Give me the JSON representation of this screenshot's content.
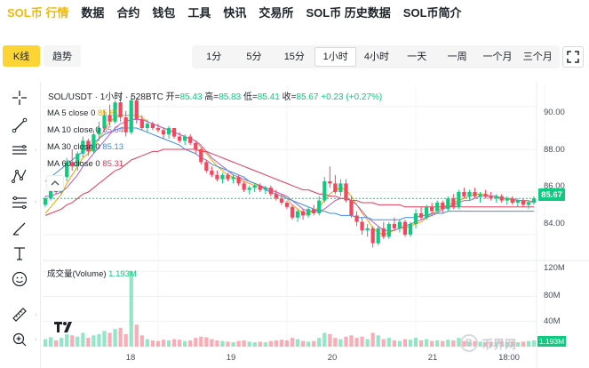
{
  "nav": {
    "items": [
      {
        "label": "SOL币 行情",
        "active": true
      },
      {
        "label": "数据",
        "active": false
      },
      {
        "label": "合约",
        "active": false
      },
      {
        "label": "钱包",
        "active": false
      },
      {
        "label": "工具",
        "active": false
      },
      {
        "label": "快讯",
        "active": false
      },
      {
        "label": "交易所",
        "active": false
      },
      {
        "label": "SOL币 历史数据",
        "active": false
      },
      {
        "label": "SOL币简介",
        "active": false
      }
    ]
  },
  "toolbar": {
    "chart_types": [
      {
        "label": "K线",
        "active": true
      },
      {
        "label": "趋势",
        "active": false
      }
    ],
    "intervals": [
      {
        "label": "1分",
        "active": false
      },
      {
        "label": "5分",
        "active": false
      },
      {
        "label": "15分",
        "active": false
      },
      {
        "label": "1小时",
        "active": true
      },
      {
        "label": "4小时",
        "active": false
      },
      {
        "label": "一天",
        "active": false
      },
      {
        "label": "一周",
        "active": false
      },
      {
        "label": "一个月",
        "active": false
      },
      {
        "label": "三个月",
        "active": false
      }
    ],
    "fullscreen_icon": "fullscreen-icon"
  },
  "drawing_tools": [
    {
      "name": "crosshair-icon"
    },
    {
      "name": "trend-line-icon"
    },
    {
      "name": "horizontal-lines-icon"
    },
    {
      "name": "pattern-icon"
    },
    {
      "name": "fib-retracement-icon"
    },
    {
      "name": "brush-icon"
    },
    {
      "name": "text-icon"
    },
    {
      "name": "emoji-icon"
    },
    {
      "name": "ruler-icon"
    },
    {
      "name": "zoom-in-icon"
    }
  ],
  "legend": {
    "symbol": "SOL/USDT · 1小时 · 528BTC",
    "open_label": "开=",
    "open": "85.43",
    "high_label": "高=",
    "high": "85.83",
    "low_label": "低=",
    "low": "85.41",
    "close_label": "收=",
    "close": "85.67",
    "change": "+0.23 (+0.27%)"
  },
  "ma": [
    {
      "label": "MA 5 close 0",
      "value": "85.61",
      "color": "#f0a500"
    },
    {
      "label": "MA 10 close 0",
      "value": "85.54",
      "color": "#b55fc7"
    },
    {
      "label": "MA 30 close 0",
      "value": "85.13",
      "color": "#3c8ee8"
    },
    {
      "label": "MA 60 close 0",
      "value": "85.31",
      "color": "#e03c5a"
    }
  ],
  "volume": {
    "label": "成交量(Volume)",
    "value": "1.193M",
    "tag": "1.193M"
  },
  "price_tag": "85.67",
  "colors": {
    "up": "#0ecb81",
    "down": "#f6465d",
    "accent": "#f0b90b"
  },
  "watermark": {
    "text": "币界网",
    "coin": "B"
  },
  "chart_data": {
    "type": "candlestick",
    "interval": "1小时",
    "y_ticks": [
      "90.00",
      "88.00",
      "86.00",
      "84.00"
    ],
    "ylim": [
      83.0,
      91.0
    ],
    "volume_ticks": [
      "120M",
      "80M",
      "40M"
    ],
    "volume_max": 130,
    "x_ticks": [
      {
        "label": "18",
        "index": 21
      },
      {
        "label": "19",
        "index": 45
      },
      {
        "label": "20",
        "index": 69
      },
      {
        "label": "21",
        "index": 93
      },
      {
        "label": "18:00",
        "index": 111
      }
    ],
    "candles": [
      [
        85.4,
        85.8,
        85.3,
        85.7,
        12
      ],
      [
        85.7,
        86.4,
        85.6,
        86.3,
        15
      ],
      [
        86.3,
        86.6,
        85.9,
        86.0,
        10
      ],
      [
        86.0,
        86.8,
        85.9,
        86.7,
        14
      ],
      [
        86.7,
        87.6,
        86.5,
        87.4,
        20
      ],
      [
        87.4,
        88.0,
        87.0,
        87.2,
        18
      ],
      [
        87.2,
        87.9,
        87.0,
        87.8,
        16
      ],
      [
        87.8,
        88.6,
        87.6,
        88.4,
        22
      ],
      [
        88.4,
        88.5,
        87.7,
        87.9,
        14
      ],
      [
        87.9,
        88.9,
        87.8,
        88.7,
        18
      ],
      [
        88.7,
        89.3,
        88.4,
        89.0,
        20
      ],
      [
        89.0,
        89.8,
        88.8,
        89.6,
        25
      ],
      [
        89.6,
        90.1,
        89.1,
        89.3,
        22
      ],
      [
        89.3,
        90.3,
        89.2,
        90.2,
        28
      ],
      [
        90.2,
        90.6,
        89.3,
        89.5,
        30
      ],
      [
        89.5,
        89.8,
        88.6,
        88.8,
        20
      ],
      [
        88.8,
        90.5,
        88.7,
        90.3,
        120
      ],
      [
        90.3,
        90.4,
        89.2,
        89.4,
        35
      ],
      [
        89.4,
        89.6,
        88.9,
        89.0,
        18
      ],
      [
        89.0,
        89.4,
        88.8,
        89.2,
        12
      ],
      [
        89.2,
        89.3,
        88.9,
        89.0,
        10
      ],
      [
        89.0,
        89.2,
        88.8,
        88.9,
        9
      ],
      [
        88.9,
        89.0,
        88.5,
        88.7,
        11
      ],
      [
        88.7,
        89.1,
        88.5,
        89.0,
        10
      ],
      [
        89.0,
        89.0,
        88.5,
        88.6,
        12
      ],
      [
        88.6,
        88.8,
        88.3,
        88.4,
        11
      ],
      [
        88.4,
        88.7,
        88.2,
        88.6,
        9
      ],
      [
        88.6,
        88.7,
        88.2,
        88.3,
        10
      ],
      [
        88.3,
        88.4,
        87.8,
        88.0,
        14
      ],
      [
        88.0,
        88.1,
        87.3,
        87.4,
        16
      ],
      [
        87.4,
        87.5,
        86.9,
        87.0,
        15
      ],
      [
        87.0,
        87.2,
        86.7,
        86.8,
        12
      ],
      [
        86.8,
        87.0,
        86.5,
        86.6,
        10
      ],
      [
        86.6,
        86.9,
        86.4,
        86.8,
        9
      ],
      [
        86.8,
        86.9,
        86.5,
        86.6,
        8
      ],
      [
        86.6,
        86.8,
        86.4,
        86.7,
        7
      ],
      [
        86.7,
        86.8,
        86.3,
        86.4,
        9
      ],
      [
        86.4,
        86.5,
        86.0,
        86.1,
        10
      ],
      [
        86.1,
        86.3,
        85.9,
        86.2,
        8
      ],
      [
        86.2,
        86.4,
        86.0,
        86.3,
        7
      ],
      [
        86.3,
        86.4,
        86.0,
        86.1,
        8
      ],
      [
        86.1,
        86.3,
        85.9,
        86.2,
        7
      ],
      [
        86.2,
        86.3,
        85.8,
        85.9,
        9
      ],
      [
        85.9,
        86.1,
        85.6,
        85.7,
        10
      ],
      [
        85.7,
        85.9,
        85.4,
        85.5,
        11
      ],
      [
        85.5,
        85.6,
        85.2,
        85.3,
        10
      ],
      [
        85.3,
        85.4,
        84.7,
        84.8,
        14
      ],
      [
        84.8,
        85.2,
        84.6,
        85.1,
        12
      ],
      [
        85.1,
        85.2,
        84.7,
        84.9,
        9
      ],
      [
        84.9,
        85.3,
        84.8,
        85.2,
        8
      ],
      [
        85.2,
        85.4,
        84.9,
        85.0,
        9
      ],
      [
        85.0,
        85.8,
        84.9,
        85.6,
        14
      ],
      [
        85.6,
        86.7,
        85.5,
        86.5,
        22
      ],
      [
        86.5,
        87.2,
        86.2,
        86.4,
        20
      ],
      [
        86.4,
        86.8,
        85.9,
        86.0,
        14
      ],
      [
        86.0,
        86.6,
        85.8,
        86.4,
        12
      ],
      [
        86.4,
        86.6,
        85.5,
        85.6,
        16
      ],
      [
        85.6,
        85.8,
        84.8,
        84.9,
        18
      ],
      [
        84.9,
        85.1,
        84.4,
        84.6,
        14
      ],
      [
        84.6,
        84.8,
        84.0,
        84.2,
        16
      ],
      [
        84.2,
        84.5,
        83.9,
        84.3,
        12
      ],
      [
        84.3,
        84.4,
        83.4,
        83.6,
        22
      ],
      [
        83.6,
        84.4,
        83.5,
        84.3,
        18
      ],
      [
        84.3,
        84.6,
        83.8,
        83.9,
        12
      ],
      [
        83.9,
        84.6,
        83.8,
        84.5,
        14
      ],
      [
        84.5,
        84.8,
        84.2,
        84.3,
        10
      ],
      [
        84.3,
        84.7,
        84.1,
        84.6,
        9
      ],
      [
        84.6,
        84.7,
        83.9,
        84.0,
        12
      ],
      [
        84.0,
        84.6,
        83.9,
        84.5,
        11
      ],
      [
        84.5,
        85.2,
        84.3,
        85.0,
        14
      ],
      [
        85.0,
        85.3,
        84.7,
        84.8,
        10
      ],
      [
        84.8,
        85.4,
        84.7,
        85.3,
        12
      ],
      [
        85.3,
        85.5,
        84.9,
        85.1,
        9
      ],
      [
        85.1,
        85.6,
        85.0,
        85.5,
        10
      ],
      [
        85.5,
        85.6,
        85.0,
        85.2,
        9
      ],
      [
        85.2,
        85.8,
        85.1,
        85.7,
        11
      ],
      [
        85.7,
        85.9,
        85.2,
        85.3,
        10
      ],
      [
        85.3,
        86.1,
        85.2,
        86.0,
        14
      ],
      [
        86.0,
        86.2,
        85.7,
        85.8,
        9
      ],
      [
        85.8,
        86.1,
        85.6,
        86.0,
        8
      ],
      [
        86.0,
        86.2,
        85.7,
        85.8,
        9
      ],
      [
        85.8,
        86.0,
        85.5,
        85.9,
        8
      ],
      [
        85.9,
        86.1,
        85.7,
        85.8,
        7
      ],
      [
        85.8,
        86.0,
        85.6,
        85.7,
        8
      ],
      [
        85.7,
        85.9,
        85.5,
        85.8,
        7
      ],
      [
        85.8,
        85.9,
        85.5,
        85.6,
        8
      ],
      [
        85.6,
        85.8,
        85.4,
        85.7,
        7
      ],
      [
        85.7,
        85.8,
        85.4,
        85.5,
        8
      ],
      [
        85.5,
        85.7,
        85.3,
        85.6,
        7
      ],
      [
        85.6,
        85.7,
        85.3,
        85.4,
        8
      ],
      [
        85.4,
        85.6,
        85.2,
        85.5,
        9
      ],
      [
        85.5,
        85.8,
        85.4,
        85.7,
        10
      ]
    ],
    "ma_series": [
      {
        "name": "MA 5",
        "color": "#f0a500",
        "values": [
          85.0,
          85.3,
          85.6,
          85.9,
          86.4,
          86.8,
          87.2,
          87.6,
          87.8,
          88.1,
          88.5,
          88.9,
          89.3,
          89.5,
          89.6,
          89.6,
          89.6,
          89.6,
          89.5,
          89.3,
          89.2,
          89.1,
          89.0,
          88.9,
          88.8,
          88.7,
          88.6,
          88.5,
          88.4,
          88.1,
          87.8,
          87.5,
          87.2,
          87.0,
          86.8,
          86.7,
          86.6,
          86.5,
          86.4,
          86.3,
          86.3,
          86.2,
          86.1,
          86.0,
          85.9,
          85.7,
          85.4,
          85.2,
          85.0,
          85.0,
          85.1,
          85.3,
          85.6,
          85.9,
          86.1,
          86.2,
          86.1,
          85.8,
          85.4,
          85.0,
          84.7,
          84.3,
          84.1,
          84.0,
          84.1,
          84.2,
          84.3,
          84.3,
          84.4,
          84.5,
          84.6,
          84.8,
          85.0,
          85.1,
          85.3,
          85.4,
          85.5,
          85.6,
          85.7,
          85.8,
          85.9,
          85.9,
          85.9,
          85.8,
          85.8,
          85.7,
          85.7,
          85.6,
          85.6,
          85.6,
          85.5,
          85.6
        ]
      },
      {
        "name": "MA 10",
        "color": "#b55fc7",
        "values": [
          85.8,
          85.8,
          85.9,
          86.0,
          86.2,
          86.5,
          86.8,
          87.2,
          87.5,
          87.8,
          88.1,
          88.4,
          88.7,
          89.0,
          89.2,
          89.3,
          89.4,
          89.4,
          89.4,
          89.3,
          89.2,
          89.1,
          89.0,
          88.9,
          88.8,
          88.7,
          88.6,
          88.5,
          88.4,
          88.2,
          87.9,
          87.6,
          87.4,
          87.2,
          87.0,
          86.8,
          86.7,
          86.6,
          86.5,
          86.4,
          86.3,
          86.2,
          86.1,
          86.0,
          85.9,
          85.8,
          85.6,
          85.4,
          85.2,
          85.1,
          85.1,
          85.1,
          85.2,
          85.4,
          85.6,
          85.7,
          85.7,
          85.6,
          85.4,
          85.1,
          84.8,
          84.6,
          84.4,
          84.2,
          84.2,
          84.2,
          84.3,
          84.4,
          84.5,
          84.6,
          84.7,
          84.8,
          84.9,
          85.0,
          85.2,
          85.3,
          85.4,
          85.5,
          85.6,
          85.6,
          85.7,
          85.8,
          85.8,
          85.8,
          85.8,
          85.7,
          85.7,
          85.7,
          85.6,
          85.6,
          85.6,
          85.5
        ]
      },
      {
        "name": "MA 30",
        "color": "#3c8ee8",
        "values": [
          86.5,
          86.7,
          86.9,
          87.1,
          87.3,
          87.5,
          87.7,
          87.9,
          88.1,
          88.3,
          88.5,
          88.7,
          88.8,
          88.9,
          89.0,
          89.0,
          89.0,
          89.0,
          88.9,
          88.8,
          88.7,
          88.6,
          88.5,
          88.4,
          88.3,
          88.2,
          88.0,
          87.9,
          87.8,
          87.6,
          87.5,
          87.3,
          87.2,
          87.1,
          87.0,
          86.9,
          86.8,
          86.7,
          86.5,
          86.4,
          86.3,
          86.1,
          86.0,
          85.9,
          85.8,
          85.7,
          85.6,
          85.5,
          85.4,
          85.3,
          85.2,
          85.1,
          85.1,
          85.0,
          85.0,
          84.9,
          84.9,
          84.9,
          84.8,
          84.8,
          84.8,
          84.7,
          84.7,
          84.7,
          84.7,
          84.7,
          84.7,
          84.8,
          84.8,
          84.8,
          84.9,
          84.9,
          85.0,
          85.0,
          85.0,
          85.1,
          85.1,
          85.1,
          85.1,
          85.1,
          85.1,
          85.1,
          85.1,
          85.1,
          85.1,
          85.1,
          85.1,
          85.1,
          85.1,
          85.1,
          85.1,
          85.1
        ]
      },
      {
        "name": "MA 60",
        "color": "#e03c5a",
        "values": [
          84.9,
          85.0,
          85.1,
          85.2,
          85.4,
          85.5,
          85.7,
          85.9,
          86.0,
          86.2,
          86.4,
          86.6,
          86.8,
          87.0,
          87.1,
          87.3,
          87.5,
          87.6,
          87.7,
          87.8,
          87.9,
          87.9,
          88.0,
          88.0,
          88.0,
          88.0,
          88.0,
          88.0,
          88.0,
          87.9,
          87.9,
          87.8,
          87.7,
          87.6,
          87.5,
          87.4,
          87.3,
          87.2,
          87.1,
          87.0,
          86.9,
          86.8,
          86.7,
          86.6,
          86.5,
          86.4,
          86.3,
          86.2,
          86.1,
          86.1,
          86.0,
          85.9,
          85.9,
          85.8,
          85.8,
          85.7,
          85.7,
          85.6,
          85.6,
          85.5,
          85.5,
          85.5,
          85.4,
          85.4,
          85.4,
          85.4,
          85.4,
          85.3,
          85.3,
          85.3,
          85.3,
          85.3,
          85.3,
          85.3,
          85.3,
          85.3,
          85.3,
          85.3,
          85.3,
          85.3,
          85.3,
          85.3,
          85.3,
          85.3,
          85.3,
          85.3,
          85.3,
          85.3,
          85.3,
          85.3,
          85.3,
          85.3
        ]
      }
    ]
  }
}
